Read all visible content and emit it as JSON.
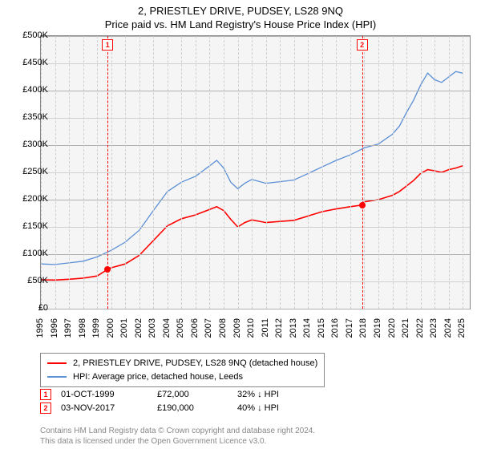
{
  "title_line1": "2, PRIESTLEY DRIVE, PUDSEY, LS28 9NQ",
  "title_line2": "Price paid vs. HM Land Registry's House Price Index (HPI)",
  "chart": {
    "background_color": "#f5f5f5",
    "grid_major_color": "#b0b0b0",
    "grid_minor_color": "#d0d0d0",
    "xmin": 1995,
    "xmax": 2025.5,
    "ymin": 0,
    "ymax": 500000,
    "ytick_step": 50000,
    "ytick_labels": [
      "£0",
      "£50K",
      "£100K",
      "£150K",
      "£200K",
      "£250K",
      "£300K",
      "£350K",
      "£400K",
      "£450K",
      "£500K"
    ],
    "xtick_years": [
      1995,
      1996,
      1997,
      1998,
      1999,
      2000,
      2001,
      2002,
      2003,
      2004,
      2005,
      2006,
      2007,
      2008,
      2009,
      2010,
      2011,
      2012,
      2013,
      2014,
      2015,
      2016,
      2017,
      2018,
      2019,
      2020,
      2021,
      2022,
      2023,
      2024,
      2025
    ],
    "series_red": {
      "label": "2, PRIESTLEY DRIVE, PUDSEY, LS28 9NQ (detached house)",
      "color": "#ff0000",
      "values": [
        [
          1995,
          53000
        ],
        [
          1996,
          52500
        ],
        [
          1997,
          54000
        ],
        [
          1998,
          56000
        ],
        [
          1999,
          60000
        ],
        [
          1999.75,
          72000
        ],
        [
          2000,
          75000
        ],
        [
          2001,
          82000
        ],
        [
          2002,
          98000
        ],
        [
          2003,
          125000
        ],
        [
          2004,
          152000
        ],
        [
          2005,
          165000
        ],
        [
          2006,
          172000
        ],
        [
          2007,
          182000
        ],
        [
          2007.5,
          187000
        ],
        [
          2008,
          180000
        ],
        [
          2008.5,
          164000
        ],
        [
          2009,
          150000
        ],
        [
          2009.5,
          158000
        ],
        [
          2010,
          163000
        ],
        [
          2011,
          158000
        ],
        [
          2012,
          160000
        ],
        [
          2013,
          162000
        ],
        [
          2014,
          170000
        ],
        [
          2015,
          178000
        ],
        [
          2016,
          183000
        ],
        [
          2017,
          187000
        ],
        [
          2017.84,
          190000
        ],
        [
          2018,
          196000
        ],
        [
          2019,
          200000
        ],
        [
          2020,
          208000
        ],
        [
          2020.5,
          215000
        ],
        [
          2021,
          225000
        ],
        [
          2021.5,
          235000
        ],
        [
          2022,
          248000
        ],
        [
          2022.5,
          255000
        ],
        [
          2023,
          253000
        ],
        [
          2023.5,
          250000
        ],
        [
          2024,
          255000
        ],
        [
          2024.5,
          258000
        ],
        [
          2025,
          262000
        ]
      ]
    },
    "series_blue": {
      "label": "HPI: Average price, detached house, Leeds",
      "color": "#5b8fd6",
      "values": [
        [
          1995,
          82000
        ],
        [
          1996,
          81000
        ],
        [
          1997,
          84000
        ],
        [
          1998,
          87000
        ],
        [
          1999,
          95000
        ],
        [
          2000,
          107000
        ],
        [
          2001,
          122000
        ],
        [
          2002,
          144000
        ],
        [
          2003,
          180000
        ],
        [
          2004,
          215000
        ],
        [
          2005,
          232000
        ],
        [
          2006,
          243000
        ],
        [
          2007,
          262000
        ],
        [
          2007.5,
          272000
        ],
        [
          2008,
          258000
        ],
        [
          2008.5,
          232000
        ],
        [
          2009,
          220000
        ],
        [
          2009.5,
          230000
        ],
        [
          2010,
          237000
        ],
        [
          2011,
          230000
        ],
        [
          2012,
          233000
        ],
        [
          2013,
          236000
        ],
        [
          2014,
          248000
        ],
        [
          2015,
          260000
        ],
        [
          2016,
          272000
        ],
        [
          2017,
          282000
        ],
        [
          2018,
          295000
        ],
        [
          2019,
          302000
        ],
        [
          2020,
          320000
        ],
        [
          2020.5,
          335000
        ],
        [
          2021,
          360000
        ],
        [
          2021.5,
          382000
        ],
        [
          2022,
          410000
        ],
        [
          2022.5,
          432000
        ],
        [
          2023,
          420000
        ],
        [
          2023.5,
          415000
        ],
        [
          2024,
          425000
        ],
        [
          2024.5,
          435000
        ],
        [
          2025,
          432000
        ]
      ]
    },
    "sale_markers": [
      {
        "n": "1",
        "year": 1999.75,
        "price": 72000
      },
      {
        "n": "2",
        "year": 2017.84,
        "price": 190000
      }
    ]
  },
  "sales": [
    {
      "n": "1",
      "date": "01-OCT-1999",
      "price": "£72,000",
      "pct": "32% ↓ HPI"
    },
    {
      "n": "2",
      "date": "03-NOV-2017",
      "price": "£190,000",
      "pct": "40% ↓ HPI"
    }
  ],
  "footer_line1": "Contains HM Land Registry data © Crown copyright and database right 2024.",
  "footer_line2": "This data is licensed under the Open Government Licence v3.0."
}
